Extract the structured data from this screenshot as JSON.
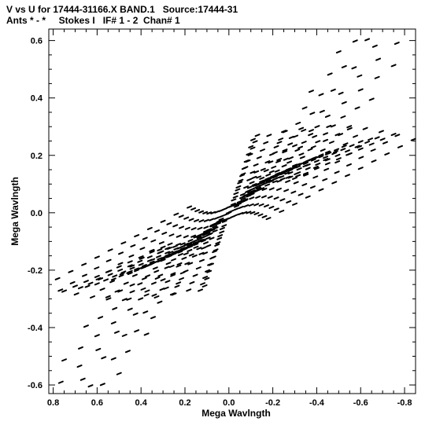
{
  "header": {
    "line1": "V vs U for 17444-31166.X BAND.1   Source:17444-31",
    "line2": "Ants * - *     Stokes I   IF# 1 - 2  Chan# 1"
  },
  "chart_data": {
    "type": "scatter",
    "xlabel": "Mega Wavlngth",
    "ylabel": "Mega Wavlngth",
    "xlim": [
      0.82,
      -0.85
    ],
    "ylim": [
      -0.63,
      0.64
    ],
    "xticks": [
      0.8,
      0.6,
      0.4,
      0.2,
      0.0,
      -0.2,
      -0.4,
      -0.6,
      -0.8
    ],
    "xtick_labels": [
      "0.8",
      "0.6",
      "0.4",
      "0.2",
      "0.0",
      "-0.2",
      "-0.4",
      "-0.6",
      "-0.8"
    ],
    "yticks": [
      0.6,
      0.4,
      0.2,
      0.0,
      -0.2,
      -0.4,
      -0.6
    ],
    "ytick_labels": [
      "0.6",
      "0.4",
      "0.2",
      "0.0",
      "-0.2",
      "-0.4",
      "-0.6"
    ],
    "grid": false,
    "marker_color": "#000000",
    "tracks": [
      {
        "u_start": 0.0,
        "u_end": -0.73,
        "v_mid": 0.0
      },
      {
        "u_start": 0.0,
        "u_end": -0.75,
        "v_mid": 0.61
      },
      {
        "u_start": 0.0,
        "u_end": -0.3,
        "v_mid": 0.27
      },
      {
        "u_start": -0.3,
        "u_end": -0.83,
        "v_mid": 0.27
      },
      {
        "u_start": 0.0,
        "u_end": -0.25,
        "v_mid": 0.2
      },
      {
        "u_start": 0.0,
        "u_end": -0.35,
        "v_mid": 0.1
      },
      {
        "u_start": 0.0,
        "u_end": -0.3,
        "v_mid": 0.0
      },
      {
        "u_start": 0.0,
        "u_end": 0.25,
        "v_mid": 0.0
      },
      {
        "u_start": 0.0,
        "u_end": 0.7,
        "v_mid": -0.61
      },
      {
        "u_start": 0.3,
        "u_end": 0.83,
        "v_mid": -0.27
      },
      {
        "u_start": 0.0,
        "u_end": 0.25,
        "v_mid": -0.2
      },
      {
        "u_start": 0.0,
        "u_end": 0.35,
        "v_mid": -0.1
      }
    ]
  }
}
